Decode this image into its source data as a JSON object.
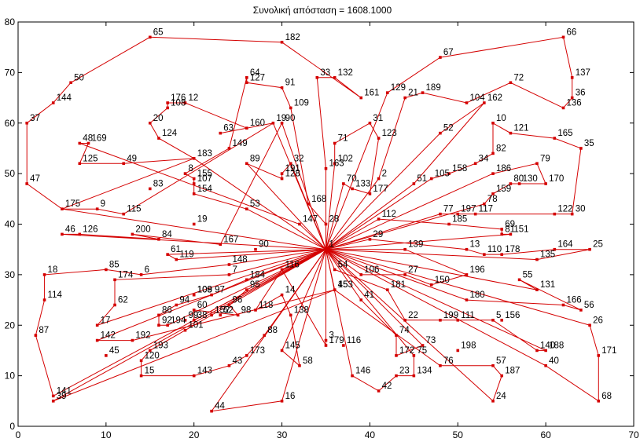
{
  "title": "Συνολική απόσταση = 1608.1000",
  "chart_data": {
    "type": "line",
    "title": "Συνολική απόσταση = 1608.1000",
    "xlim": [
      0,
      70
    ],
    "ylim": [
      0,
      80
    ],
    "xticks": [
      0,
      10,
      20,
      30,
      40,
      50,
      60,
      70
    ],
    "yticks": [
      0,
      10,
      20,
      30,
      40,
      50,
      60,
      70,
      80
    ],
    "grid": false,
    "line_color": "#d40000",
    "depot": {
      "x": 35,
      "y": 35
    },
    "points": [
      {
        "label": "65",
        "x": 15,
        "y": 77
      },
      {
        "label": "182",
        "x": 30,
        "y": 76
      },
      {
        "label": "66",
        "x": 62,
        "y": 77
      },
      {
        "label": "67",
        "x": 48,
        "y": 73
      },
      {
        "label": "50",
        "x": 6,
        "y": 68
      },
      {
        "label": "137",
        "x": 63,
        "y": 69
      },
      {
        "label": "64",
        "x": 26,
        "y": 69
      },
      {
        "label": "127",
        "x": 26,
        "y": 68
      },
      {
        "label": "33",
        "x": 34,
        "y": 69
      },
      {
        "label": "132",
        "x": 36,
        "y": 69
      },
      {
        "label": "72",
        "x": 56,
        "y": 68
      },
      {
        "label": "91",
        "x": 30,
        "y": 67
      },
      {
        "label": "129",
        "x": 42,
        "y": 66
      },
      {
        "label": "161",
        "x": 39,
        "y": 65
      },
      {
        "label": "144",
        "x": 4,
        "y": 64
      },
      {
        "label": "12",
        "x": 19,
        "y": 64
      },
      {
        "label": "176",
        "x": 17,
        "y": 64
      },
      {
        "label": "36",
        "x": 63,
        "y": 65
      },
      {
        "label": "21",
        "x": 44,
        "y": 65
      },
      {
        "label": "189",
        "x": 46,
        "y": 66
      },
      {
        "label": "104",
        "x": 51,
        "y": 64
      },
      {
        "label": "162",
        "x": 53,
        "y": 64
      },
      {
        "label": "108",
        "x": 17,
        "y": 63
      },
      {
        "label": "136",
        "x": 62,
        "y": 63
      },
      {
        "label": "109",
        "x": 31,
        "y": 63
      },
      {
        "label": "37",
        "x": 1,
        "y": 60
      },
      {
        "label": "20",
        "x": 15,
        "y": 60
      },
      {
        "label": "19",
        "x": 29,
        "y": 60
      },
      {
        "label": "90",
        "x": 30,
        "y": 60
      },
      {
        "label": "160",
        "x": 26,
        "y": 59
      },
      {
        "label": "31",
        "x": 40,
        "y": 60
      },
      {
        "label": "10",
        "x": 54,
        "y": 60
      },
      {
        "label": "121",
        "x": 56,
        "y": 58
      },
      {
        "label": "63",
        "x": 23,
        "y": 58
      },
      {
        "label": "52",
        "x": 48,
        "y": 58
      },
      {
        "label": "124",
        "x": 16,
        "y": 57
      },
      {
        "label": "123",
        "x": 41,
        "y": 57
      },
      {
        "label": "165",
        "x": 61,
        "y": 57
      },
      {
        "label": "71",
        "x": 36,
        "y": 56
      },
      {
        "label": "48",
        "x": 7,
        "y": 56
      },
      {
        "label": "169",
        "x": 8,
        "y": 56
      },
      {
        "label": "149",
        "x": 24,
        "y": 55
      },
      {
        "label": "35",
        "x": 64,
        "y": 55
      },
      {
        "label": "82",
        "x": 54,
        "y": 54
      },
      {
        "label": "183",
        "x": 20,
        "y": 53
      },
      {
        "label": "102",
        "x": 36,
        "y": 52
      },
      {
        "label": "125",
        "x": 7,
        "y": 52
      },
      {
        "label": "89",
        "x": 26,
        "y": 52
      },
      {
        "label": "32",
        "x": 31,
        "y": 52
      },
      {
        "label": "34",
        "x": 52,
        "y": 52
      },
      {
        "label": "79",
        "x": 59,
        "y": 52
      },
      {
        "label": "49",
        "x": 12,
        "y": 52
      },
      {
        "label": "163",
        "x": 35,
        "y": 51
      },
      {
        "label": "191",
        "x": 30,
        "y": 50
      },
      {
        "label": "158",
        "x": 49,
        "y": 50
      },
      {
        "label": "186",
        "x": 54,
        "y": 50
      },
      {
        "label": "8",
        "x": 19,
        "y": 50
      },
      {
        "label": "2",
        "x": 41,
        "y": 49
      },
      {
        "label": "105",
        "x": 47,
        "y": 49
      },
      {
        "label": "155",
        "x": 20,
        "y": 49
      },
      {
        "label": "128",
        "x": 30,
        "y": 49
      },
      {
        "label": "80",
        "x": 56,
        "y": 48
      },
      {
        "label": "130",
        "x": 57,
        "y": 48
      },
      {
        "label": "170",
        "x": 60,
        "y": 48
      },
      {
        "label": "47",
        "x": 1,
        "y": 48
      },
      {
        "label": "83",
        "x": 15,
        "y": 47
      },
      {
        "label": "107",
        "x": 20,
        "y": 48
      },
      {
        "label": "70",
        "x": 37,
        "y": 48
      },
      {
        "label": "51",
        "x": 45,
        "y": 48
      },
      {
        "label": "133",
        "x": 38,
        "y": 47
      },
      {
        "label": "177",
        "x": 40,
        "y": 46
      },
      {
        "label": "154",
        "x": 20,
        "y": 46
      },
      {
        "label": "159",
        "x": 54,
        "y": 46
      },
      {
        "label": "168",
        "x": 33,
        "y": 44
      },
      {
        "label": "78",
        "x": 53,
        "y": 44
      },
      {
        "label": "9",
        "x": 9,
        "y": 43
      },
      {
        "label": "115",
        "x": 12,
        "y": 42
      },
      {
        "label": "53",
        "x": 26,
        "y": 43
      },
      {
        "label": "175",
        "x": 5,
        "y": 43
      },
      {
        "label": "77",
        "x": 48,
        "y": 42
      },
      {
        "label": "197",
        "x": 50,
        "y": 42
      },
      {
        "label": "117",
        "x": 52,
        "y": 42
      },
      {
        "label": "122",
        "x": 61,
        "y": 42
      },
      {
        "label": "30",
        "x": 63,
        "y": 42
      },
      {
        "label": "112",
        "x": 41,
        "y": 41
      },
      {
        "label": "28",
        "x": 35,
        "y": 40
      },
      {
        "label": "19",
        "x": 20,
        "y": 40
      },
      {
        "label": "147",
        "x": 32,
        "y": 40
      },
      {
        "label": "185",
        "x": 49,
        "y": 40
      },
      {
        "label": "69",
        "x": 55,
        "y": 39
      },
      {
        "label": "46",
        "x": 5,
        "y": 38
      },
      {
        "label": "126",
        "x": 7,
        "y": 38
      },
      {
        "label": "200",
        "x": 13,
        "y": 38
      },
      {
        "label": "84",
        "x": 16,
        "y": 37
      },
      {
        "label": "29",
        "x": 40,
        "y": 37
      },
      {
        "label": "81",
        "x": 55,
        "y": 38
      },
      {
        "label": "151",
        "x": 56,
        "y": 38
      },
      {
        "label": "167",
        "x": 23,
        "y": 36
      },
      {
        "label": "1",
        "x": 35,
        "y": 35
      },
      {
        "label": "90",
        "x": 27,
        "y": 35
      },
      {
        "label": "139",
        "x": 44,
        "y": 35
      },
      {
        "label": "13",
        "x": 51,
        "y": 35
      },
      {
        "label": "164",
        "x": 61,
        "y": 35
      },
      {
        "label": "25",
        "x": 65,
        "y": 35
      },
      {
        "label": "61",
        "x": 17,
        "y": 34
      },
      {
        "label": "119",
        "x": 18,
        "y": 33
      },
      {
        "label": "110",
        "x": 53,
        "y": 34
      },
      {
        "label": "178",
        "x": 55,
        "y": 34
      },
      {
        "label": "135",
        "x": 59,
        "y": 33
      },
      {
        "label": "148",
        "x": 24,
        "y": 32
      },
      {
        "label": "116",
        "x": 30,
        "y": 31
      },
      {
        "label": "85",
        "x": 10,
        "y": 31
      },
      {
        "label": "18",
        "x": 3,
        "y": 30
      },
      {
        "label": "6",
        "x": 14,
        "y": 30
      },
      {
        "label": "7",
        "x": 24,
        "y": 30
      },
      {
        "label": "54",
        "x": 36,
        "y": 31
      },
      {
        "label": "106",
        "x": 39,
        "y": 30
      },
      {
        "label": "27",
        "x": 44,
        "y": 30
      },
      {
        "label": "196",
        "x": 51,
        "y": 30
      },
      {
        "label": "55",
        "x": 57,
        "y": 29
      },
      {
        "label": "174",
        "x": 11,
        "y": 29
      },
      {
        "label": "184",
        "x": 26,
        "y": 29
      },
      {
        "label": "150",
        "x": 47,
        "y": 28
      },
      {
        "label": "131",
        "x": 59,
        "y": 27
      },
      {
        "label": "108",
        "x": 20,
        "y": 26
      },
      {
        "label": "109",
        "x": 20,
        "y": 26
      },
      {
        "label": "97",
        "x": 22,
        "y": 26
      },
      {
        "label": "95",
        "x": 26,
        "y": 27
      },
      {
        "label": "153",
        "x": 36,
        "y": 27
      },
      {
        "label": "45",
        "x": 36,
        "y": 27
      },
      {
        "label": "181",
        "x": 42,
        "y": 27
      },
      {
        "label": "14",
        "x": 30,
        "y": 26
      },
      {
        "label": "41",
        "x": 39,
        "y": 25
      },
      {
        "label": "180",
        "x": 51,
        "y": 25
      },
      {
        "label": "166",
        "x": 62,
        "y": 24
      },
      {
        "label": "62",
        "x": 11,
        "y": 24
      },
      {
        "label": "94",
        "x": 18,
        "y": 24
      },
      {
        "label": "60",
        "x": 20,
        "y": 23
      },
      {
        "label": "96",
        "x": 24,
        "y": 24
      },
      {
        "label": "56",
        "x": 64,
        "y": 23
      },
      {
        "label": "118",
        "x": 27,
        "y": 23
      },
      {
        "label": "86",
        "x": 16,
        "y": 22
      },
      {
        "label": "99",
        "x": 19,
        "y": 21
      },
      {
        "label": "38",
        "x": 20,
        "y": 21
      },
      {
        "label": "152",
        "x": 22,
        "y": 22
      },
      {
        "label": "52",
        "x": 23,
        "y": 22
      },
      {
        "label": "98",
        "x": 25,
        "y": 22
      },
      {
        "label": "138",
        "x": 31,
        "y": 22
      },
      {
        "label": "22",
        "x": 44,
        "y": 21
      },
      {
        "label": "199",
        "x": 48,
        "y": 21
      },
      {
        "label": "111",
        "x": 50,
        "y": 21
      },
      {
        "label": "5",
        "x": 54,
        "y": 21
      },
      {
        "label": "156",
        "x": 55,
        "y": 21
      },
      {
        "label": "26",
        "x": 65,
        "y": 20
      },
      {
        "label": "17",
        "x": 9,
        "y": 20
      },
      {
        "label": "92",
        "x": 16,
        "y": 20
      },
      {
        "label": "194",
        "x": 17,
        "y": 20
      },
      {
        "label": "101",
        "x": 19,
        "y": 19
      },
      {
        "label": "88",
        "x": 28,
        "y": 18
      },
      {
        "label": "142",
        "x": 9,
        "y": 17
      },
      {
        "label": "192",
        "x": 13,
        "y": 17
      },
      {
        "label": "74",
        "x": 43,
        "y": 18
      },
      {
        "label": "3",
        "x": 35,
        "y": 17
      },
      {
        "label": "179",
        "x": 35,
        "y": 16
      },
      {
        "label": "116",
        "x": 37,
        "y": 16
      },
      {
        "label": "73",
        "x": 46,
        "y": 16
      },
      {
        "label": "198",
        "x": 50,
        "y": 15
      },
      {
        "label": "140",
        "x": 59,
        "y": 15
      },
      {
        "label": "188",
        "x": 60,
        "y": 15
      },
      {
        "label": "87",
        "x": 2,
        "y": 18
      },
      {
        "label": "145",
        "x": 30,
        "y": 15
      },
      {
        "label": "45",
        "x": 10,
        "y": 14
      },
      {
        "label": "193",
        "x": 15,
        "y": 15
      },
      {
        "label": "120",
        "x": 14,
        "y": 13
      },
      {
        "label": "173",
        "x": 26,
        "y": 14
      },
      {
        "label": "172",
        "x": 43,
        "y": 14
      },
      {
        "label": "75",
        "x": 45,
        "y": 14
      },
      {
        "label": "58",
        "x": 32,
        "y": 12
      },
      {
        "label": "43",
        "x": 24,
        "y": 12
      },
      {
        "label": "57",
        "x": 54,
        "y": 12
      },
      {
        "label": "40",
        "x": 60,
        "y": 12
      },
      {
        "label": "76",
        "x": 48,
        "y": 12
      },
      {
        "label": "171",
        "x": 66,
        "y": 14
      },
      {
        "label": "15",
        "x": 14,
        "y": 10
      },
      {
        "label": "143",
        "x": 20,
        "y": 10
      },
      {
        "label": "23",
        "x": 43,
        "y": 10
      },
      {
        "label": "134",
        "x": 45,
        "y": 10
      },
      {
        "label": "187",
        "x": 55,
        "y": 10
      },
      {
        "label": "146",
        "x": 38,
        "y": 10
      },
      {
        "label": "141",
        "x": 4,
        "y": 6
      },
      {
        "label": "39",
        "x": 4,
        "y": 5
      },
      {
        "label": "42",
        "x": 41,
        "y": 7
      },
      {
        "label": "16",
        "x": 30,
        "y": 5
      },
      {
        "label": "24",
        "x": 54,
        "y": 5
      },
      {
        "label": "68",
        "x": 66,
        "y": 5
      },
      {
        "label": "44",
        "x": 22,
        "y": 3
      },
      {
        "label": "114",
        "x": 3,
        "y": 25
      }
    ],
    "routes": [
      [
        "1",
        "28",
        "168",
        "109",
        "91",
        "127",
        "64",
        "149",
        "8",
        "155",
        "107",
        "154",
        "53",
        "1"
      ],
      [
        "1",
        "19",
        "63",
        "160",
        "12",
        "176",
        "108",
        "20",
        "124",
        "183",
        "175",
        "9",
        "115",
        "19",
        "1"
      ],
      [
        "1",
        "90",
        "167",
        "200",
        "84",
        "126",
        "46",
        "1"
      ],
      [
        "1",
        "32",
        "191",
        "128",
        "89",
        "1"
      ],
      [
        "1",
        "102",
        "71",
        "31",
        "123",
        "177",
        "133",
        "70",
        "1"
      ],
      [
        "1",
        "163",
        "33",
        "132",
        "161",
        "182",
        "65",
        "50",
        "144",
        "37",
        "47",
        "175",
        "1"
      ],
      [
        "1",
        "129",
        "67",
        "66",
        "137",
        "36",
        "136",
        "72",
        "104",
        "189",
        "21",
        "2",
        "1"
      ],
      [
        "1",
        "52",
        "162",
        "51",
        "1"
      ],
      [
        "1",
        "105",
        "158",
        "34",
        "82",
        "10",
        "121",
        "165",
        "35",
        "30",
        "122",
        "117",
        "197",
        "77",
        "1"
      ],
      [
        "1",
        "186",
        "79",
        "170",
        "130",
        "80",
        "159",
        "78",
        "1"
      ],
      [
        "1",
        "112",
        "185",
        "69",
        "81",
        "151",
        "1"
      ],
      [
        "1",
        "29",
        "13",
        "110",
        "178",
        "164",
        "25",
        "135",
        "1"
      ],
      [
        "1",
        "139",
        "196",
        "150",
        "27",
        "106",
        "1"
      ],
      [
        "1",
        "131",
        "55",
        "56",
        "166",
        "180",
        "1"
      ],
      [
        "1",
        "54",
        "181",
        "22",
        "199",
        "111",
        "5",
        "140",
        "188",
        "1"
      ],
      [
        "1",
        "41",
        "74",
        "172",
        "73",
        "1"
      ],
      [
        "1",
        "153",
        "76",
        "57",
        "187",
        "24",
        "1"
      ],
      [
        "1",
        "148",
        "6",
        "85",
        "18",
        "114",
        "87",
        "141",
        "1"
      ],
      [
        "1",
        "7",
        "174",
        "62",
        "17",
        "1"
      ],
      [
        "1",
        "116",
        "118",
        "14",
        "138",
        "58",
        "145",
        "1"
      ],
      [
        "1",
        "3",
        "179",
        "116",
        "1"
      ],
      [
        "1",
        "95",
        "96",
        "98",
        "60",
        "38",
        "1"
      ],
      [
        "1",
        "184",
        "97",
        "94",
        "86",
        "92",
        "194",
        "1"
      ],
      [
        "1",
        "101",
        "193",
        "120",
        "15",
        "143",
        "43",
        "173",
        "88",
        "1"
      ],
      [
        "1",
        "146",
        "42",
        "23",
        "134",
        "75",
        "1"
      ],
      [
        "1",
        "26",
        "171",
        "68",
        "40",
        "1"
      ],
      [
        "1",
        "16",
        "44",
        "1"
      ],
      [
        "1",
        "142",
        "192",
        "45",
        "39",
        "1"
      ],
      [
        "1",
        "61",
        "119",
        "1"
      ],
      [
        "1",
        "147",
        "48",
        "169",
        "125",
        "49",
        "183",
        "1"
      ]
    ]
  }
}
